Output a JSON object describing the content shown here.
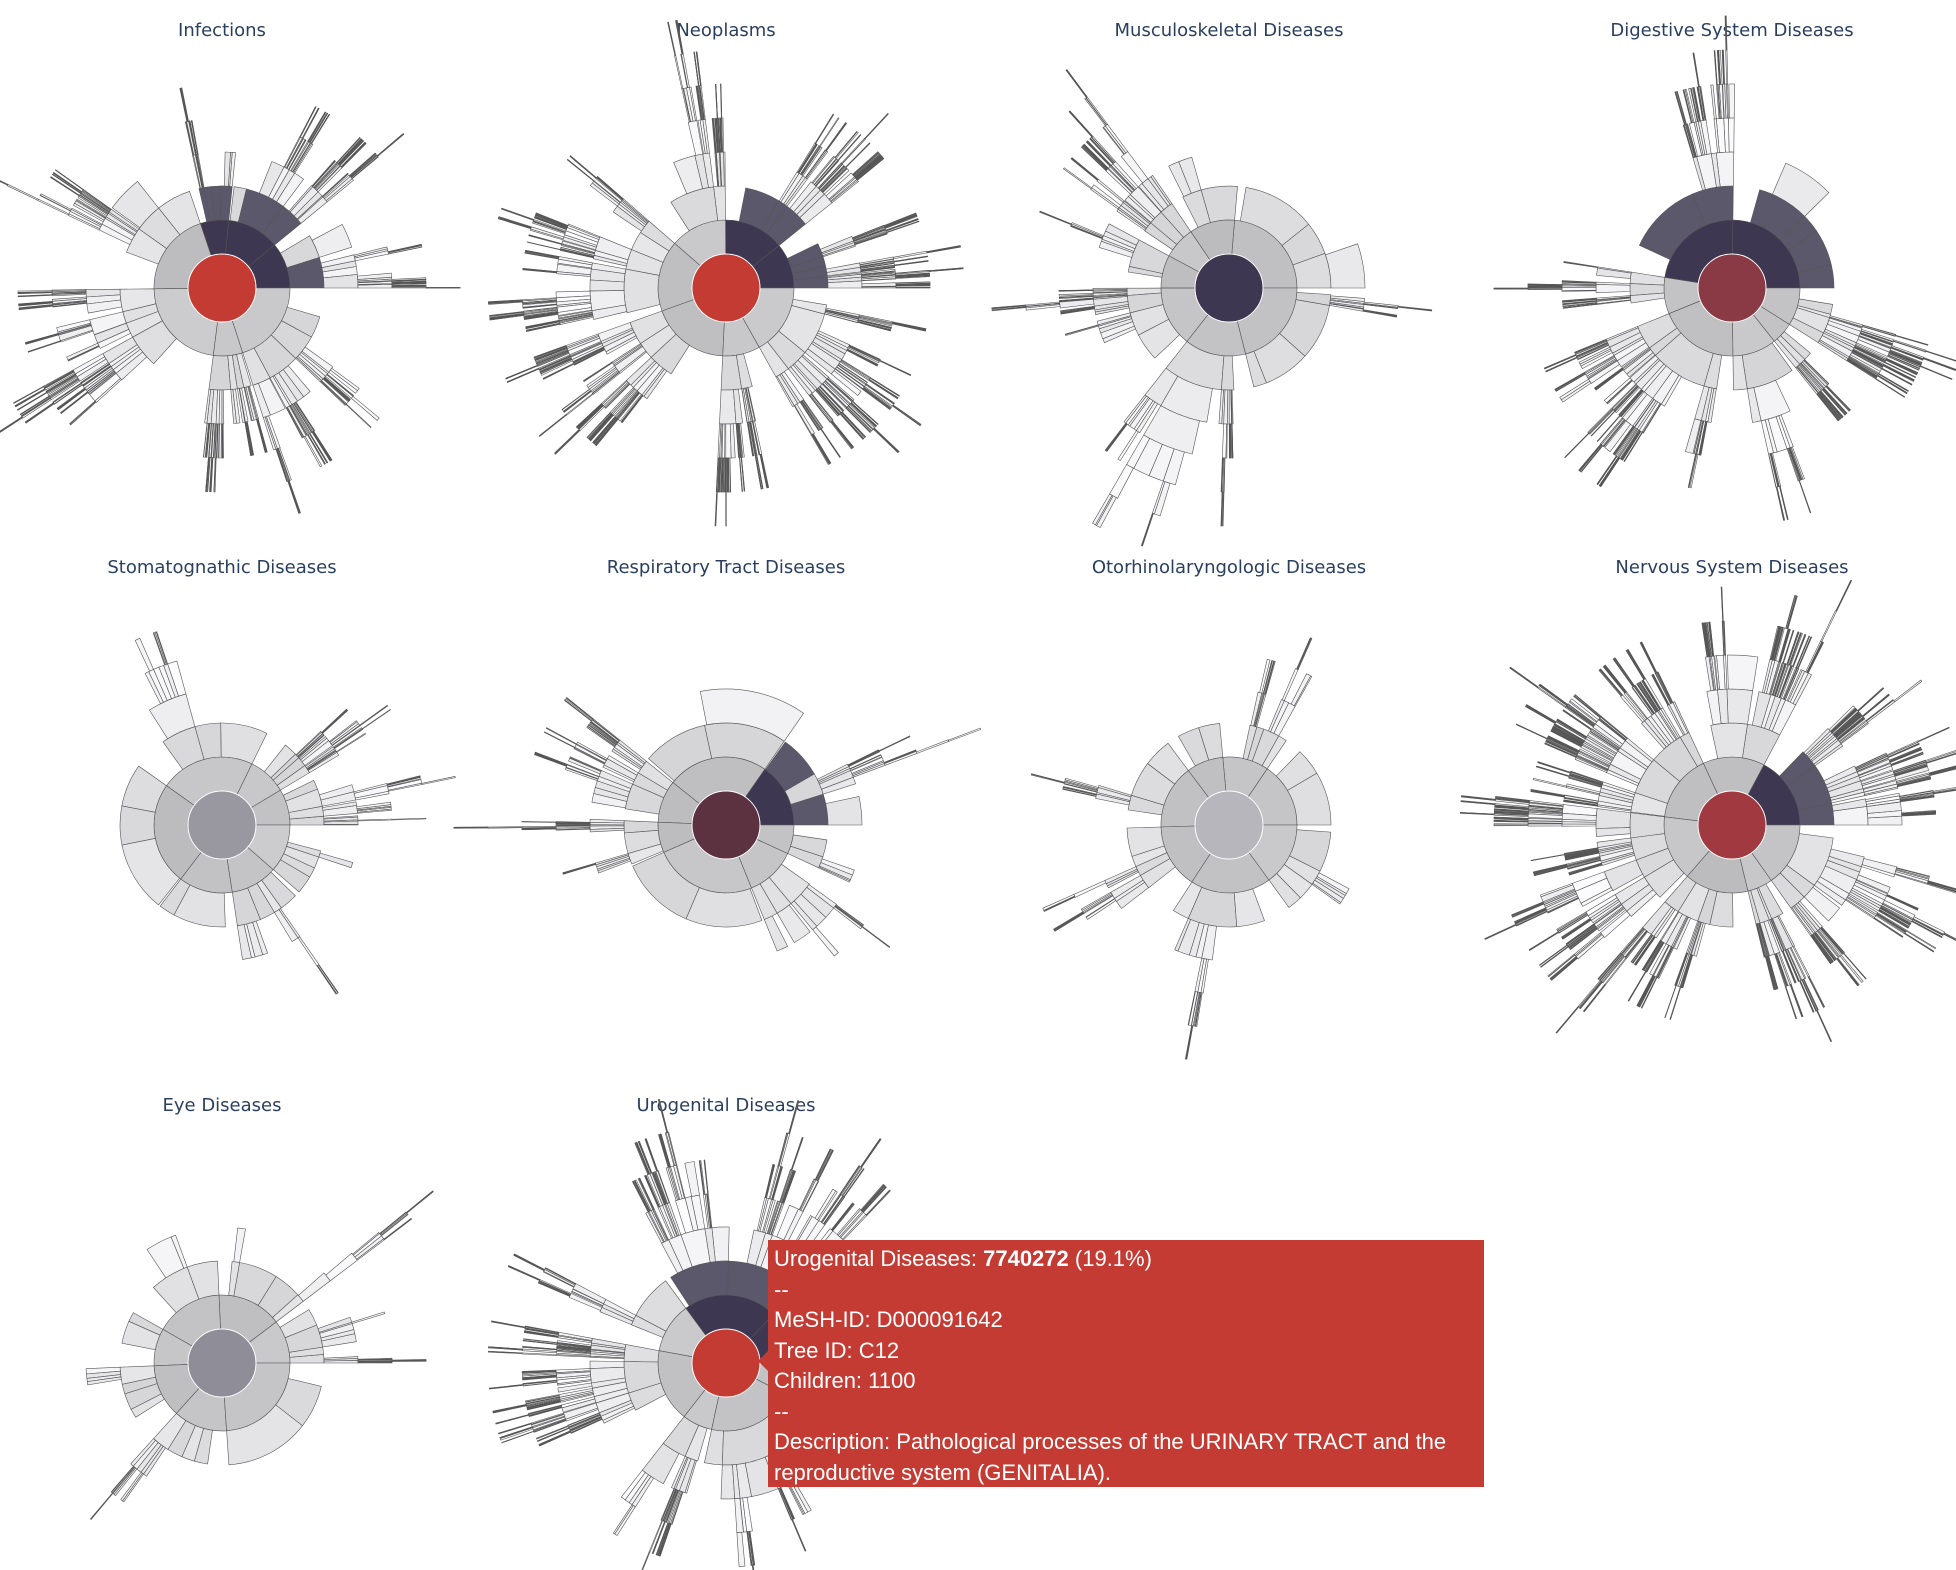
{
  "chart_data": [
    {
      "type": "sunburst",
      "title": "Infections",
      "root_color": "#c43b33",
      "highlighted_branches": 3,
      "density": 1.0,
      "seed": 11
    },
    {
      "type": "sunburst",
      "title": "Neoplasms",
      "root_color": "#c43b33",
      "highlighted_branches": 2,
      "density": 1.1,
      "seed": 23
    },
    {
      "type": "sunburst",
      "title": "Musculoskeletal Diseases",
      "root_color": "#3d3751",
      "highlighted_branches": 0,
      "density": 0.9,
      "seed": 37
    },
    {
      "type": "sunburst",
      "title": "Digestive System Diseases",
      "root_color": "#8a3a45",
      "highlighted_branches": 2,
      "density": 1.0,
      "seed": 41
    },
    {
      "type": "sunburst",
      "title": "Stomatognathic Diseases",
      "root_color": "#99979f",
      "highlighted_branches": 0,
      "density": 0.6,
      "seed": 53
    },
    {
      "type": "sunburst",
      "title": "Respiratory Tract Diseases",
      "root_color": "#5c3240",
      "highlighted_branches": 1,
      "density": 0.7,
      "seed": 67
    },
    {
      "type": "sunburst",
      "title": "Otorhinolaryngologic Diseases",
      "root_color": "#b8b6bd",
      "highlighted_branches": 0,
      "density": 0.45,
      "seed": 71
    },
    {
      "type": "sunburst",
      "title": "Nervous System Diseases",
      "root_color": "#a03a40",
      "highlighted_branches": 1,
      "density": 1.2,
      "seed": 83
    },
    {
      "type": "sunburst",
      "title": "Eye Diseases",
      "root_color": "#8f8d97",
      "highlighted_branches": 0,
      "density": 0.6,
      "seed": 97
    },
    {
      "type": "sunburst",
      "title": "Urogenital Diseases",
      "root_color": "#c43b33",
      "highlighted_branches": 2,
      "density": 1.1,
      "seed": 101
    }
  ],
  "tooltip": {
    "name": "Urogenital Diseases:",
    "value": "7740272",
    "percent": "(19.1%)",
    "separator1": "--",
    "mesh_id": "MeSH-ID: D000091642",
    "tree_id": "Tree ID: C12",
    "children": "Children: 1100",
    "separator2": "--",
    "description": "Description: Pathological processes of the URINARY TRACT and the reproductive system (GENITALIA).",
    "background": "#c43b33"
  },
  "colors": {
    "title": "#2a3f5f",
    "segment_stroke": "#555555",
    "dark_segment": "#3d3751",
    "light_segment": "#f4f4f6"
  }
}
